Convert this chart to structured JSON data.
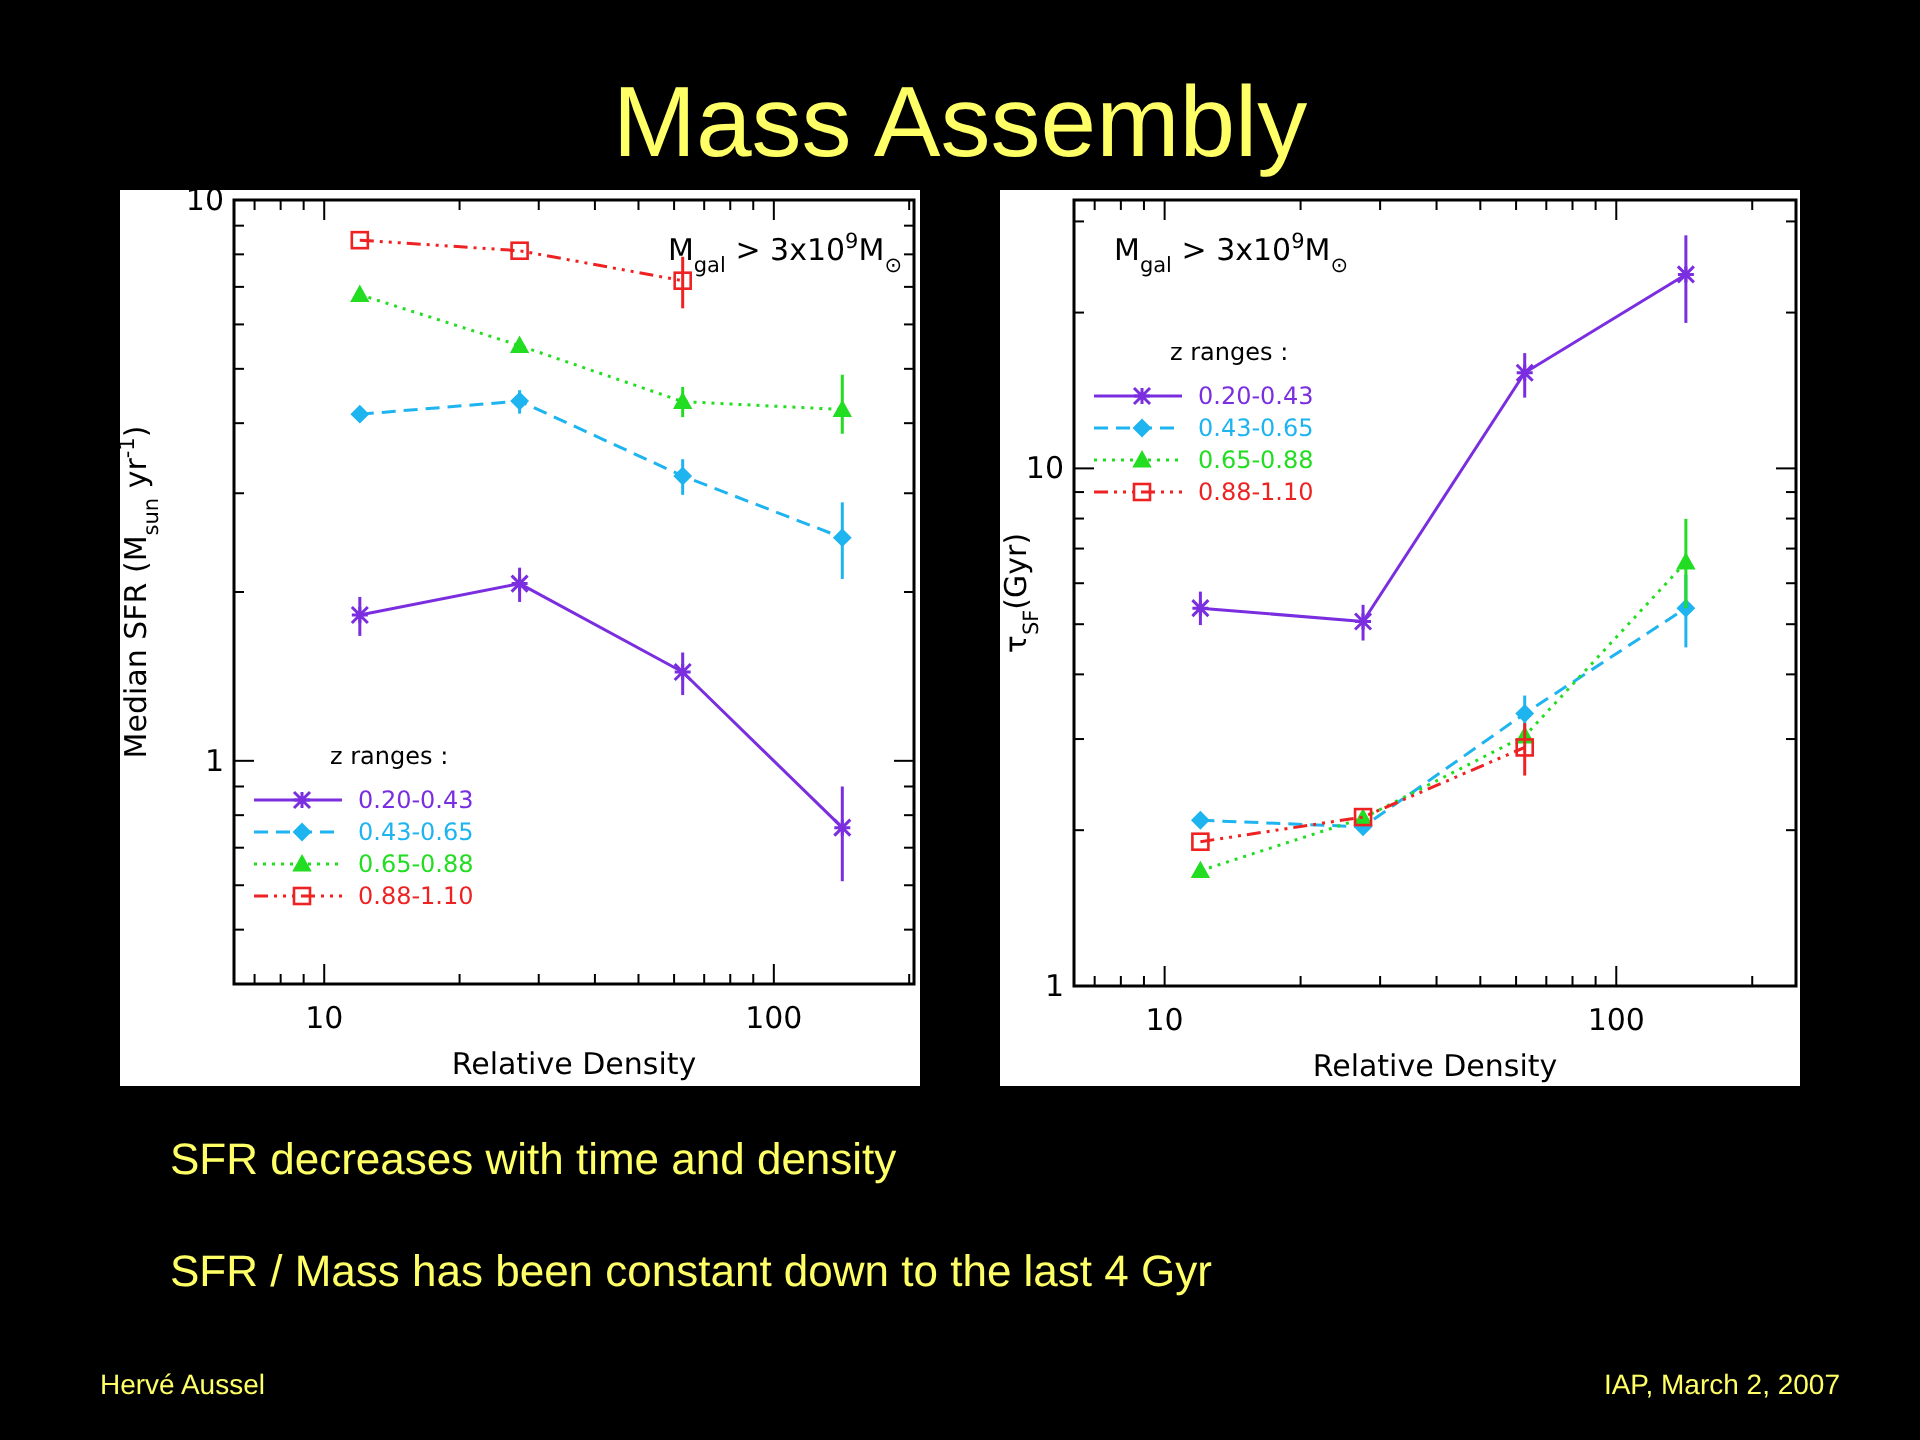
{
  "chart_data": [
    {
      "type": "line",
      "title": "Mass Assembly",
      "xlabel": "Relative Density",
      "ylabel": "Median SFR (M$_{sun}$ yr$^{-1}$)",
      "legend_title": "z ranges :",
      "legend": "bottom left",
      "log": "xy",
      "grid": false,
      "xlim": [
        6.3,
        205
      ],
      "xticks": [
        {
          "value": 7,
          "label": null
        },
        {
          "value": 8,
          "label": null
        },
        {
          "value": 9,
          "label": null
        },
        {
          "value": 10,
          "label": "10"
        },
        {
          "value": 20,
          "label": null
        },
        {
          "value": 30,
          "label": null
        },
        {
          "value": 40,
          "label": null
        },
        {
          "value": 50,
          "label": null
        },
        {
          "value": 60,
          "label": null
        },
        {
          "value": 70,
          "label": null
        },
        {
          "value": 80,
          "label": null
        },
        {
          "value": 90,
          "label": null
        },
        {
          "value": 100,
          "label": "100"
        },
        {
          "value": 200,
          "label": null
        }
      ],
      "ylim": [
        0.4,
        10
      ],
      "yticks": [
        {
          "value": 0.4,
          "label": null
        },
        {
          "value": 0.5,
          "label": null
        },
        {
          "value": 0.6,
          "label": null
        },
        {
          "value": 0.7,
          "label": null
        },
        {
          "value": 0.8,
          "label": null
        },
        {
          "value": 0.9,
          "label": null
        },
        {
          "value": 1,
          "label": "1"
        },
        {
          "value": 2,
          "label": null
        },
        {
          "value": 3,
          "label": null
        },
        {
          "value": 4,
          "label": null
        },
        {
          "value": 5,
          "label": null
        },
        {
          "value": 6,
          "label": null
        },
        {
          "value": 7,
          "label": null
        },
        {
          "value": 8,
          "label": null
        },
        {
          "value": 9,
          "label": null
        },
        {
          "value": 10,
          "label": "10"
        }
      ],
      "x": [
        12,
        27.2,
        62.7,
        142
      ],
      "annotations": [
        "M$_{gal}$ > 3x10$^{9}$M$_{⊙}$"
      ],
      "series": [
        {
          "name": "0.20-0.43",
          "color": "#7a2ee0",
          "marker": "cross",
          "line_style": "solid",
          "values": [
            1.82,
            2.07,
            1.44,
            0.76
          ],
          "errors": [
            [
              1.67,
              1.96
            ],
            [
              1.92,
              2.21
            ],
            [
              1.31,
              1.56
            ],
            [
              0.61,
              0.9
            ]
          ]
        },
        {
          "name": "0.43-0.65",
          "color": "#1eb4f0",
          "marker": "diamond",
          "line_style": "dashed",
          "values": [
            4.15,
            4.38,
            3.22,
            2.5
          ],
          "errors": [
            null,
            [
              4.16,
              4.58
            ],
            [
              2.98,
              3.45
            ],
            [
              2.11,
              2.89
            ]
          ]
        },
        {
          "name": "0.65-0.88",
          "color": "#22dd22",
          "marker": "triangle",
          "line_style": "dotted",
          "values": [
            6.78,
            5.5,
            4.37,
            4.23
          ],
          "errors": [
            null,
            null,
            [
              4.1,
              4.64
            ],
            [
              3.83,
              4.88
            ]
          ]
        },
        {
          "name": "0.88-1.10",
          "color": "#ee2222",
          "marker": "square",
          "line_style": "dashdot",
          "values": [
            8.48,
            8.12,
            7.18,
            null
          ],
          "errors": [
            null,
            null,
            [
              6.41,
              7.92
            ],
            null
          ]
        }
      ]
    },
    {
      "type": "line",
      "xlabel": "Relative Density",
      "ylabel": "τ$_{SF}$(Gyr)",
      "legend_title": "z ranges :",
      "legend": "top left",
      "log": "xy",
      "grid": false,
      "xlim": [
        6.3,
        250
      ],
      "xticks": [
        {
          "value": 7,
          "label": null
        },
        {
          "value": 8,
          "label": null
        },
        {
          "value": 9,
          "label": null
        },
        {
          "value": 10,
          "label": "10"
        },
        {
          "value": 20,
          "label": null
        },
        {
          "value": 30,
          "label": null
        },
        {
          "value": 40,
          "label": null
        },
        {
          "value": 50,
          "label": null
        },
        {
          "value": 60,
          "label": null
        },
        {
          "value": 70,
          "label": null
        },
        {
          "value": 80,
          "label": null
        },
        {
          "value": 90,
          "label": null
        },
        {
          "value": 100,
          "label": "100"
        },
        {
          "value": 200,
          "label": null
        }
      ],
      "ylim": [
        1,
        33
      ],
      "yticks": [
        {
          "value": 1,
          "label": "1"
        },
        {
          "value": 2,
          "label": null
        },
        {
          "value": 3,
          "label": null
        },
        {
          "value": 4,
          "label": null
        },
        {
          "value": 5,
          "label": null
        },
        {
          "value": 6,
          "label": null
        },
        {
          "value": 7,
          "label": null
        },
        {
          "value": 8,
          "label": null
        },
        {
          "value": 9,
          "label": null
        },
        {
          "value": 10,
          "label": "10"
        },
        {
          "value": 20,
          "label": null
        },
        {
          "value": 30,
          "label": null
        }
      ],
      "x": [
        12,
        27.5,
        62.7,
        142.6
      ],
      "annotations": [
        "M$_{gal}$ > 3x10$^{9}$M$_{⊙}$",
        "SFR decreases with time and density",
        "SFR / Mass has been constant down to the last 4 Gyr",
        "Hervé Aussel",
        "IAP, March 2, 2007"
      ],
      "series": [
        {
          "name": "0.20-0.43",
          "color": "#7a2ee0",
          "marker": "cross",
          "line_style": "solid",
          "values": [
            5.37,
            5.06,
            15.3,
            23.7
          ],
          "errors": [
            [
              4.98,
              5.78
            ],
            [
              4.65,
              5.45
            ],
            [
              13.7,
              16.7
            ],
            [
              19.1,
              28.2
            ]
          ]
        },
        {
          "name": "0.43-0.65",
          "color": "#1eb4f0",
          "marker": "diamond",
          "line_style": "dashed",
          "values": [
            2.09,
            2.03,
            3.36,
            5.37
          ],
          "errors": [
            null,
            null,
            [
              3.08,
              3.64
            ],
            [
              4.51,
              6.23
            ]
          ]
        },
        {
          "name": "0.65-0.88",
          "color": "#22dd22",
          "marker": "triangle",
          "line_style": "dotted",
          "values": [
            1.67,
            2.11,
            3.04,
            6.59
          ],
          "errors": [
            null,
            null,
            null,
            [
              5.37,
              7.99
            ]
          ]
        },
        {
          "name": "0.88-1.10",
          "color": "#ee2222",
          "marker": "square",
          "line_style": "dashdot",
          "values": [
            1.9,
            2.12,
            2.89,
            null
          ],
          "errors": [
            null,
            null,
            [
              2.55,
              3.22
            ],
            null
          ]
        }
      ]
    }
  ]
}
